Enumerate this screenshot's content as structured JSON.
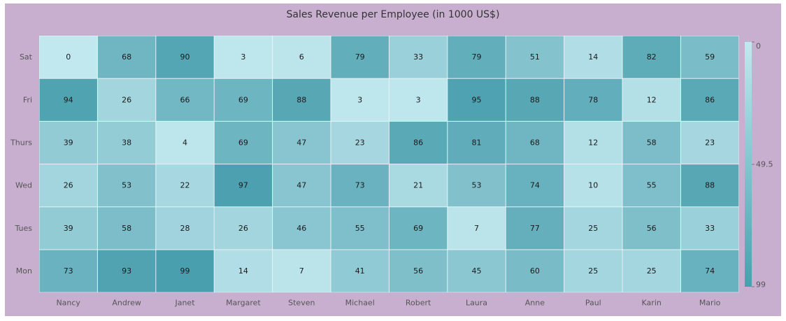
{
  "chart_data": {
    "type": "heatmap",
    "title": "Sales Revenue per Employee (in 1000 US$)",
    "x_categories": [
      "Nancy",
      "Andrew",
      "Janet",
      "Margaret",
      "Steven",
      "Michael",
      "Robert",
      "Laura",
      "Anne",
      "Paul",
      "Karin",
      "Mario"
    ],
    "y_categories": [
      "Sat",
      "Fri",
      "Thurs",
      "Wed",
      "Tues",
      "Mon"
    ],
    "values": [
      [
        0,
        68,
        90,
        3,
        6,
        79,
        33,
        79,
        51,
        14,
        82,
        59
      ],
      [
        94,
        26,
        66,
        69,
        88,
        3,
        3,
        95,
        88,
        78,
        12,
        86
      ],
      [
        39,
        38,
        4,
        69,
        47,
        23,
        86,
        81,
        68,
        12,
        58,
        23
      ],
      [
        26,
        53,
        22,
        97,
        47,
        73,
        21,
        53,
        74,
        10,
        55,
        88
      ],
      [
        39,
        58,
        28,
        26,
        46,
        55,
        69,
        7,
        77,
        25,
        56,
        33
      ],
      [
        73,
        93,
        99,
        14,
        7,
        41,
        56,
        45,
        60,
        25,
        25,
        74
      ]
    ],
    "color_range": {
      "min": 0,
      "mid": 49.5,
      "max": 99,
      "min_color": "#c2e8ef",
      "max_color": "#4a9fae"
    },
    "legend": {
      "placement": "right",
      "labels": [
        "0",
        "49.5",
        "99"
      ]
    },
    "background_color": "#c8afd0",
    "grid_line_color": "#e6f3f6"
  }
}
